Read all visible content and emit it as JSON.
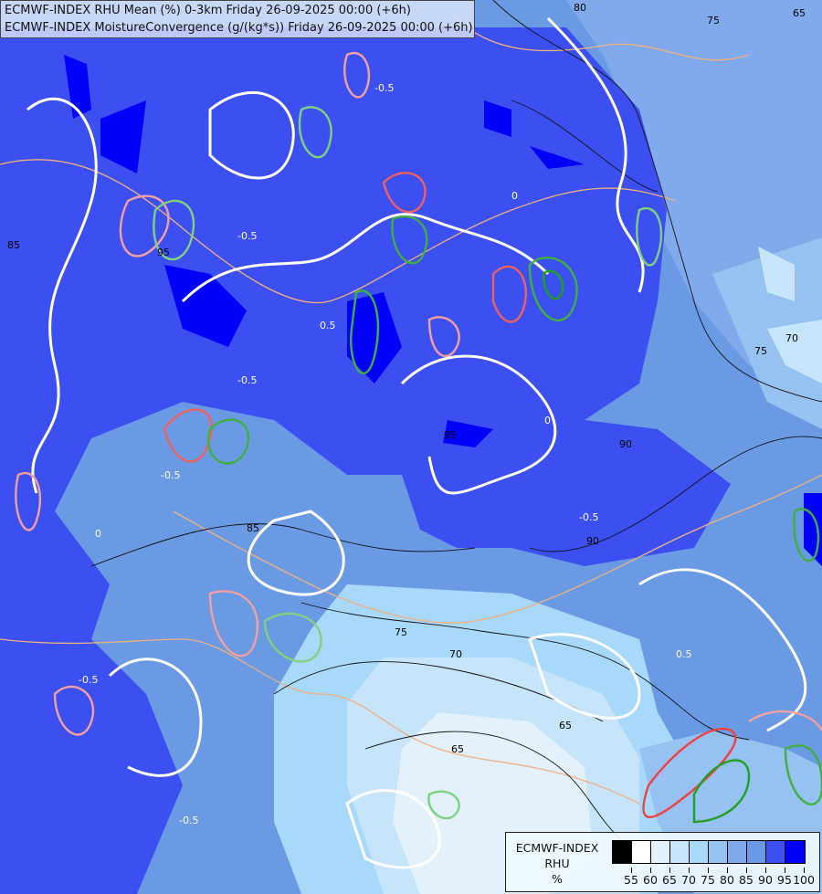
{
  "title": {
    "line1": "ECMWF-INDEX RHU Mean (%) 0-3km Friday 26-09-2025 00:00 (+6h)",
    "line2": "ECMWF-INDEX MoistureConvergence (g/(kg*s)) Friday 26-09-2025 00:00 (+6h)"
  },
  "legend": {
    "title_lines": [
      "ECMWF-INDEX",
      "RHU",
      "%"
    ],
    "colors": [
      "#000000",
      "#ffffff",
      "#e2f1fc",
      "#c6e4fa",
      "#a8d8fa",
      "#96c2f2",
      "#80aaec",
      "#6a9ae4",
      "#3c4ff0",
      "#0000f8"
    ],
    "ticks": [
      "55",
      "60",
      "65",
      "70",
      "75",
      "80",
      "85",
      "90",
      "95",
      "100"
    ]
  },
  "contour_colors": {
    "convergence_positive": "#80d080",
    "convergence_negative": "#f4a0a0",
    "zero": "#ffffff",
    "rhu_isoline": "#000000",
    "border": "#f0b080"
  },
  "contour_labels": [
    "80",
    "75",
    "65",
    "85",
    "90",
    "85",
    "75",
    "70",
    "65",
    "65",
    "70",
    "75",
    "90",
    "-0.5",
    "-0.5",
    "-0.5",
    "-0.5",
    "-0.5",
    "-0.5",
    "-0.5",
    "0",
    "0",
    "0",
    "0.5",
    "0.5",
    "95",
    "95"
  ]
}
